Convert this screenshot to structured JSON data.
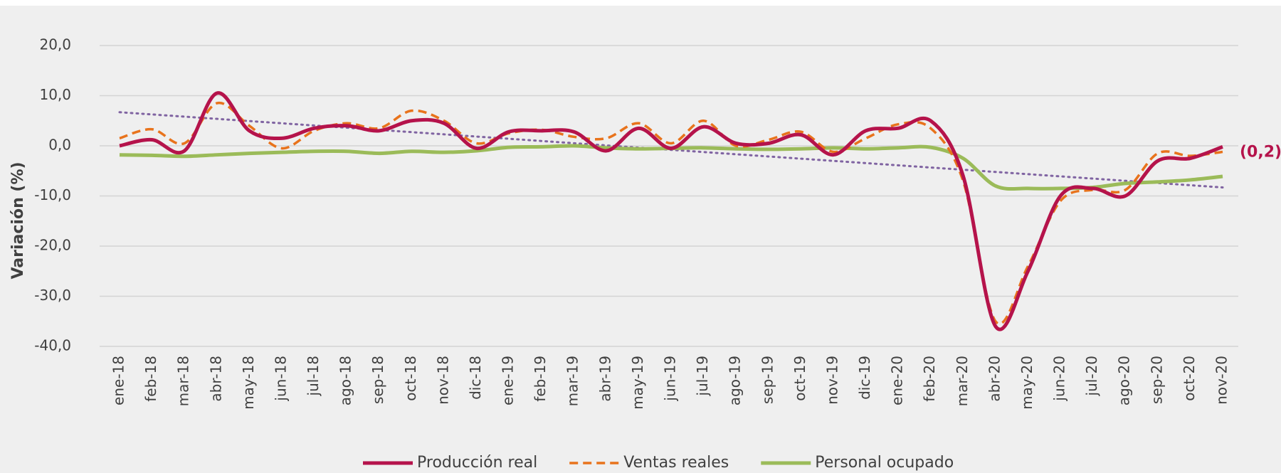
{
  "chart_data": {
    "type": "line",
    "y_label": "Variación (%)",
    "categories": [
      "ene-18",
      "feb-18",
      "mar-18",
      "abr-18",
      "may-18",
      "jun-18",
      "jul-18",
      "ago-18",
      "sep-18",
      "oct-18",
      "nov-18",
      "dic-18",
      "ene-19",
      "feb-19",
      "mar-19",
      "abr-19",
      "may-19",
      "jun-19",
      "jul-19",
      "ago-19",
      "sep-19",
      "oct-19",
      "nov-19",
      "dic-19",
      "ene-20",
      "feb-20",
      "mar-20",
      "abr-20",
      "may-20",
      "jun-20",
      "jul-20",
      "ago-20",
      "sep-20",
      "oct-20",
      "nov-20"
    ],
    "series": [
      {
        "name": "Producción real",
        "color": "#b5134b",
        "dash": false,
        "values": [
          0,
          1.2,
          -1,
          10.5,
          3,
          1.5,
          3.5,
          4,
          3,
          5,
          4.5,
          -0.5,
          2.8,
          3,
          2.8,
          -1,
          3.5,
          -0.5,
          3.8,
          0.5,
          0.5,
          2.2,
          -1.8,
          3,
          3.5,
          5,
          -6,
          -36,
          -25,
          -10,
          -8.5,
          -10,
          -3,
          -2.5,
          -0.2
        ],
        "value_labels": [
          null,
          null,
          null,
          null,
          null,
          null,
          null,
          null,
          null,
          null,
          null,
          null,
          null,
          null,
          null,
          null,
          null,
          null,
          null,
          null,
          null,
          null,
          null,
          null,
          null,
          null,
          null,
          null,
          null,
          null,
          null,
          null,
          null,
          null,
          "(0,2)"
        ]
      },
      {
        "name": "Ventas reales",
        "color": "#e8731c",
        "dash": true,
        "values": [
          1.5,
          3.3,
          0.5,
          8.5,
          4,
          -0.5,
          3,
          4.5,
          3.5,
          7,
          5,
          0.5,
          2.5,
          3.2,
          1.8,
          1.5,
          4.5,
          0.5,
          5,
          0,
          1.2,
          2.8,
          -1.2,
          1.5,
          4.3,
          3.5,
          -7,
          -35,
          -24,
          -11,
          -8.8,
          -8.8,
          -1.5,
          -2,
          -1.2
        ]
      },
      {
        "name": "Personal ocupado",
        "color": "#9bbb59",
        "dash": false,
        "values": [
          -1.8,
          -1.9,
          -2.1,
          -1.8,
          -1.5,
          -1.3,
          -1.1,
          -1.1,
          -1.5,
          -1.1,
          -1.3,
          -1,
          -0.3,
          -0.2,
          0,
          -0.4,
          -0.6,
          -0.5,
          -0.4,
          -0.6,
          -0.7,
          -0.6,
          -0.4,
          -0.6,
          -0.4,
          -0.3,
          -2.5,
          -8,
          -8.5,
          -8.5,
          -8.3,
          -7.5,
          -7.2,
          -6.8,
          -6.1
        ]
      }
    ],
    "trend": {
      "color": "#8064a2",
      "values": [
        6.7,
        -8.3
      ]
    },
    "ylim": [
      -40,
      20
    ],
    "yticks": [
      {
        "value": -40,
        "label": "-40,0"
      },
      {
        "value": -30,
        "label": "-30,0"
      },
      {
        "value": -20,
        "label": "-20,0"
      },
      {
        "value": -10,
        "label": "-10,0"
      },
      {
        "value": 0,
        "label": "0,0"
      },
      {
        "value": 10,
        "label": "10,0"
      },
      {
        "value": 20,
        "label": "20,0"
      }
    ],
    "grid": true,
    "legend": "bottom"
  }
}
